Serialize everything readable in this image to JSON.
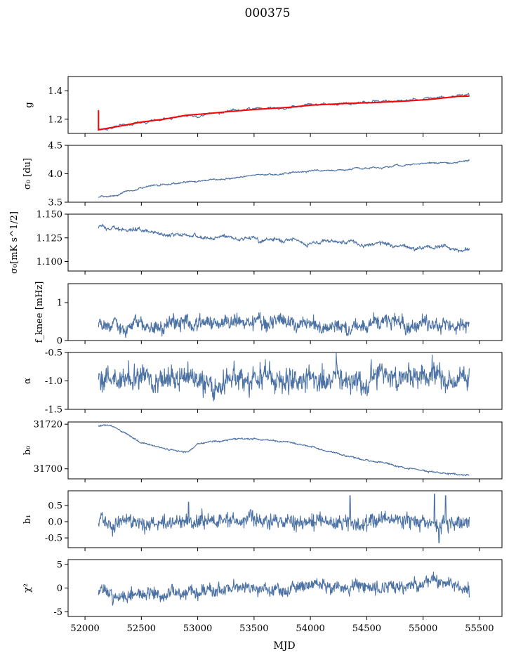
{
  "figure": {
    "title": "000375"
  },
  "colors": {
    "series": "#4c72a4",
    "fit": "#ff0000"
  },
  "chart_data": {
    "type": "line",
    "title": "000375",
    "xlabel": "MJD",
    "xlim": [
      51850,
      55700
    ],
    "x_ticks": [
      52000,
      52500,
      53000,
      53500,
      54000,
      54500,
      55000,
      55500
    ],
    "x_start": 52120,
    "x_end": 55410,
    "panels": [
      {
        "id": "g",
        "ylabel": "g",
        "ylim": [
          1.1,
          1.5
        ],
        "yticks": [
          1.2,
          1.4
        ],
        "start": 1.125,
        "end": 1.36,
        "noise": 0.002,
        "smooth": 0.003,
        "trend": [
          [
            52120,
            1.125
          ],
          [
            52300,
            1.15
          ],
          [
            52500,
            1.18
          ],
          [
            52700,
            1.2
          ],
          [
            52900,
            1.228
          ],
          [
            53100,
            1.24
          ],
          [
            53300,
            1.255
          ],
          [
            53500,
            1.268
          ],
          [
            53800,
            1.283
          ],
          [
            54000,
            1.298
          ],
          [
            54300,
            1.31
          ],
          [
            54600,
            1.318
          ],
          [
            54900,
            1.33
          ],
          [
            55100,
            1.342
          ],
          [
            55300,
            1.36
          ],
          [
            55410,
            1.362
          ]
        ],
        "fit": true
      },
      {
        "id": "sigma0",
        "ylabel": "σ₀ [du]",
        "ylim": [
          3.5,
          4.5
        ],
        "yticks": [
          3.5,
          4.0,
          4.5
        ],
        "start": 3.58,
        "end": 4.25,
        "noise": 0.005,
        "smooth": 0.004,
        "trend": [
          [
            52120,
            3.58
          ],
          [
            52300,
            3.65
          ],
          [
            52500,
            3.75
          ],
          [
            52800,
            3.83
          ],
          [
            53000,
            3.88
          ],
          [
            53300,
            3.93
          ],
          [
            53600,
            3.99
          ],
          [
            54000,
            4.05
          ],
          [
            54300,
            4.08
          ],
          [
            54700,
            4.13
          ],
          [
            55000,
            4.17
          ],
          [
            55300,
            4.21
          ],
          [
            55410,
            4.25
          ]
        ]
      },
      {
        "id": "sigma0_phys",
        "ylabel": "σ₀[mK s^1/2]",
        "ylim": [
          1.09,
          1.15
        ],
        "yticks": [
          1.1,
          1.125,
          1.15
        ],
        "start": 1.135,
        "end": 1.114,
        "noise": 0.0007,
        "smooth": 0.0006,
        "trend": [
          [
            52120,
            1.136
          ],
          [
            52400,
            1.133
          ],
          [
            52800,
            1.128
          ],
          [
            53200,
            1.125
          ],
          [
            53600,
            1.123
          ],
          [
            54000,
            1.121
          ],
          [
            54400,
            1.119
          ],
          [
            54800,
            1.117
          ],
          [
            55200,
            1.114
          ],
          [
            55410,
            1.114
          ]
        ]
      },
      {
        "id": "fknee",
        "ylabel": "f_knee [mHz]",
        "ylim": [
          0,
          1.5
        ],
        "yticks": [
          0,
          1
        ],
        "start": 0.35,
        "end": 0.45,
        "noise": 0.09,
        "smooth": 0.03,
        "trend": [
          [
            52120,
            0.42
          ],
          [
            55410,
            0.42
          ]
        ]
      },
      {
        "id": "alpha",
        "ylabel": "α",
        "ylim": [
          -1.5,
          -0.5
        ],
        "yticks": [
          -1.5,
          -1.0,
          -0.5
        ],
        "start": -0.98,
        "end": -0.78,
        "noise": 0.1,
        "smooth": 0.03,
        "trend": [
          [
            52120,
            -0.95
          ],
          [
            55410,
            -0.95
          ]
        ]
      },
      {
        "id": "b0",
        "ylabel": "b₀",
        "ylim": [
          31695.5,
          31721
        ],
        "yticks": [
          31700,
          31720
        ],
        "start": 31719,
        "end": 31697,
        "noise": 0.15,
        "smooth": 0.08,
        "trend": [
          [
            52120,
            31719
          ],
          [
            52200,
            31720
          ],
          [
            52350,
            31716
          ],
          [
            52500,
            31712
          ],
          [
            52700,
            31709
          ],
          [
            52900,
            31707
          ],
          [
            53000,
            31711
          ],
          [
            53100,
            31712
          ],
          [
            53300,
            31713
          ],
          [
            53500,
            31713.5
          ],
          [
            53800,
            31712
          ],
          [
            54000,
            31710
          ],
          [
            54300,
            31706
          ],
          [
            54600,
            31703
          ],
          [
            54900,
            31700
          ],
          [
            55200,
            31698
          ],
          [
            55410,
            31697
          ]
        ]
      },
      {
        "id": "b1",
        "ylabel": "b₁",
        "ylim": [
          -0.8,
          0.95
        ],
        "yticks": [
          -0.5,
          0.0,
          0.5
        ],
        "start": -0.05,
        "end": 0.15,
        "noise": 0.11,
        "smooth": 0.03,
        "trend": [
          [
            52120,
            0
          ],
          [
            52500,
            -0.05
          ],
          [
            53000,
            0.05
          ],
          [
            54000,
            0
          ],
          [
            55410,
            0
          ]
        ],
        "spikes": [
          [
            52920,
            0.6
          ],
          [
            54350,
            0.8
          ],
          [
            55100,
            0.85
          ],
          [
            55200,
            0.8
          ],
          [
            55140,
            -0.65
          ]
        ]
      },
      {
        "id": "chi2",
        "ylabel": "χ²",
        "ylim": [
          -6,
          6
        ],
        "yticks": [
          -5,
          0,
          5
        ],
        "start": -1.5,
        "end": -2,
        "noise": 0.6,
        "smooth": 0.2,
        "trend": [
          [
            52120,
            -1.5
          ],
          [
            52800,
            -1
          ],
          [
            53500,
            0
          ],
          [
            54500,
            0.3
          ],
          [
            55410,
            0.5
          ]
        ]
      }
    ]
  }
}
